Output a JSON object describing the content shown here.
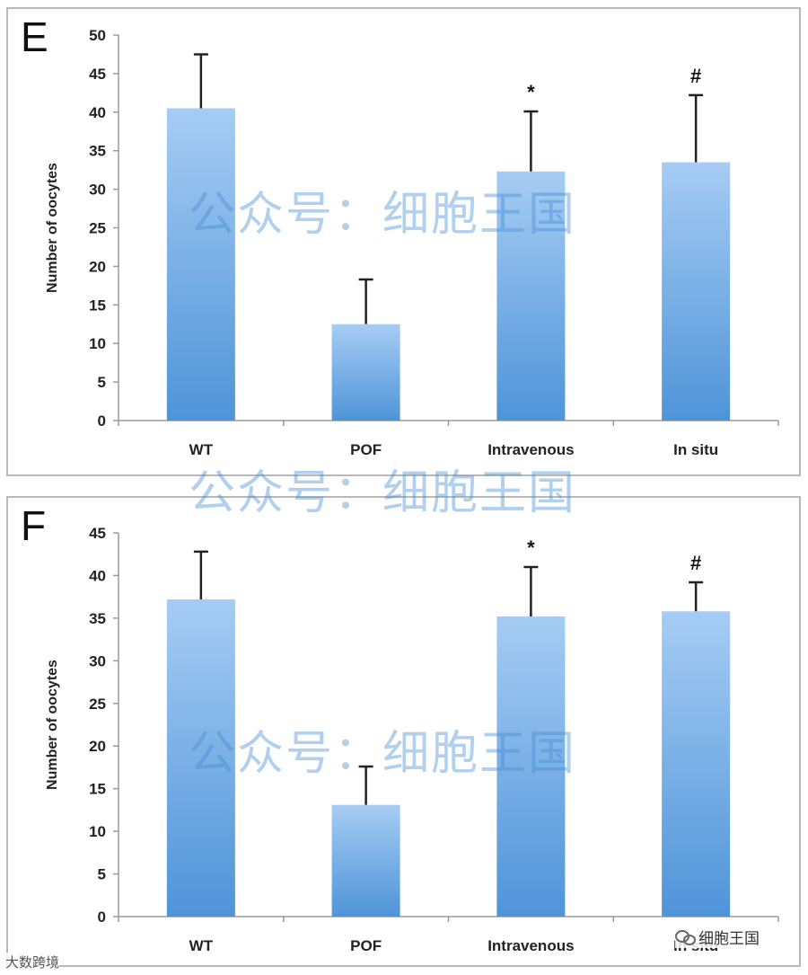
{
  "watermark": {
    "text": "公众号：细胞王国"
  },
  "footer": {
    "left_text": "大数跨境",
    "right_text": "细胞王国",
    "right_icon": "wechat-icon"
  },
  "chart_data": [
    {
      "type": "bar",
      "panel_label": "E",
      "categories": [
        "WT",
        "POF",
        "Intravenous",
        "In situ"
      ],
      "values": [
        40.5,
        12.5,
        32.3,
        33.5
      ],
      "error": [
        7.0,
        5.8,
        7.8,
        8.7
      ],
      "annotations": [
        "",
        "",
        "*",
        "#"
      ],
      "ylabel": "Number of oocytes",
      "xlabel": "",
      "title": "",
      "ylim": [
        0,
        50
      ],
      "yticks": [
        0,
        5,
        10,
        15,
        20,
        25,
        30,
        35,
        40,
        45,
        50
      ],
      "bar_color_top": "#a6ccf4",
      "bar_color_bottom": "#4f94d8",
      "grid": false
    },
    {
      "type": "bar",
      "panel_label": "F",
      "categories": [
        "WT",
        "POF",
        "Intravenous",
        "In situ"
      ],
      "values": [
        37.2,
        13.1,
        35.2,
        35.8
      ],
      "error": [
        5.6,
        4.5,
        5.8,
        3.4
      ],
      "annotations": [
        "",
        "",
        "*",
        "#"
      ],
      "ylabel": "Number of oocytes",
      "xlabel": "",
      "title": "",
      "ylim": [
        0,
        45
      ],
      "yticks": [
        0,
        5,
        10,
        15,
        20,
        25,
        30,
        35,
        40,
        45
      ],
      "bar_color_top": "#a6ccf4",
      "bar_color_bottom": "#4f94d8",
      "grid": false
    }
  ]
}
